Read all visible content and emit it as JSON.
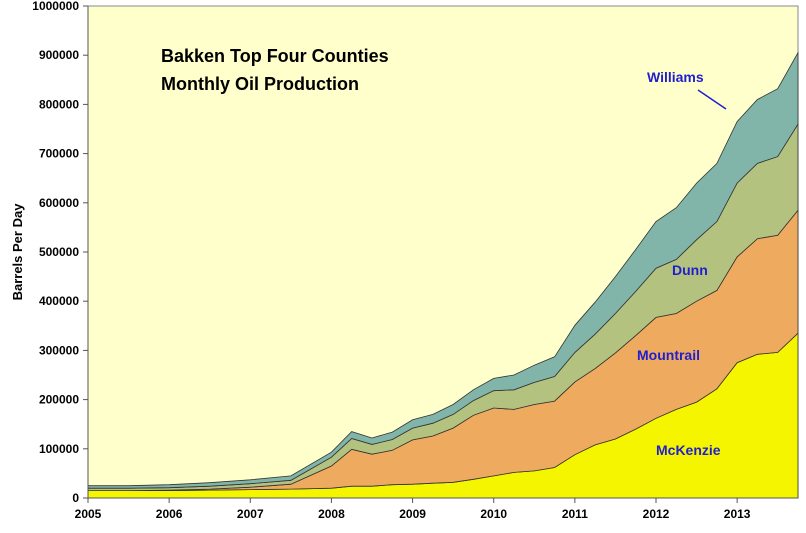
{
  "chart_data": {
    "type": "area",
    "stacked": true,
    "title": "Bakken Top Four Counties",
    "subtitle": "Monthly Oil Production",
    "xlabel": "",
    "ylabel": "Barrels Per Day",
    "xlim": [
      2005,
      2013.75
    ],
    "ylim": [
      0,
      1000000
    ],
    "x_ticks": [
      "2005",
      "2006",
      "2007",
      "2008",
      "2009",
      "2010",
      "2011",
      "2012",
      "2013"
    ],
    "y_ticks": [
      "0",
      "100000",
      "200000",
      "300000",
      "400000",
      "500000",
      "600000",
      "700000",
      "800000",
      "900000",
      "1000000"
    ],
    "grid": false,
    "legend": "none",
    "x": [
      2005,
      2005.5,
      2006,
      2006.5,
      2007,
      2007.5,
      2008,
      2008.25,
      2008.5,
      2008.75,
      2009,
      2009.25,
      2009.5,
      2009.75,
      2010,
      2010.25,
      2010.5,
      2010.75,
      2011,
      2011.25,
      2011.5,
      2011.75,
      2012,
      2012.25,
      2012.5,
      2012.75,
      2013,
      2013.25,
      2013.5,
      2013.75
    ],
    "series": [
      {
        "name": "McKenzie",
        "color": "#f5f500",
        "values": [
          15000,
          15000,
          15000,
          16000,
          17000,
          18000,
          20000,
          24000,
          24000,
          27000,
          28000,
          30000,
          32000,
          38000,
          45000,
          52000,
          55000,
          62000,
          88000,
          108000,
          120000,
          140000,
          162000,
          180000,
          195000,
          222000,
          275000,
          292000,
          296000,
          335000
        ]
      },
      {
        "name": "Mountrail",
        "color": "#eeaa5e",
        "values": [
          0,
          0,
          1000,
          2000,
          5000,
          10000,
          45000,
          75000,
          65000,
          70000,
          90000,
          96000,
          110000,
          130000,
          138000,
          128000,
          135000,
          135000,
          148000,
          155000,
          175000,
          190000,
          205000,
          195000,
          205000,
          200000,
          215000,
          235000,
          238000,
          250000
        ]
      },
      {
        "name": "Dunn",
        "color": "#b4c27f",
        "values": [
          5000,
          5000,
          5000,
          6000,
          7000,
          8000,
          18000,
          22000,
          20000,
          22000,
          24000,
          26000,
          28000,
          30000,
          35000,
          40000,
          45000,
          50000,
          60000,
          70000,
          80000,
          90000,
          100000,
          110000,
          125000,
          140000,
          150000,
          153000,
          160000,
          175000
        ]
      },
      {
        "name": "Williams",
        "color": "#82b5a9",
        "values": [
          5000,
          5000,
          6000,
          7000,
          8000,
          9000,
          10000,
          14000,
          13000,
          15000,
          17000,
          18000,
          20000,
          22000,
          25000,
          30000,
          35000,
          40000,
          55000,
          65000,
          75000,
          85000,
          95000,
          105000,
          115000,
          118000,
          125000,
          130000,
          138000,
          145000
        ]
      }
    ],
    "annotations": [
      {
        "text": "Williams",
        "series": "Williams"
      },
      {
        "text": "Dunn",
        "series": "Dunn"
      },
      {
        "text": "Mountrail",
        "series": "Mountrail"
      },
      {
        "text": "McKenzie",
        "series": "McKenzie"
      }
    ],
    "colors": {
      "plot_bg": "#ffffcc",
      "annotation_text": "#1f1fd0"
    }
  }
}
